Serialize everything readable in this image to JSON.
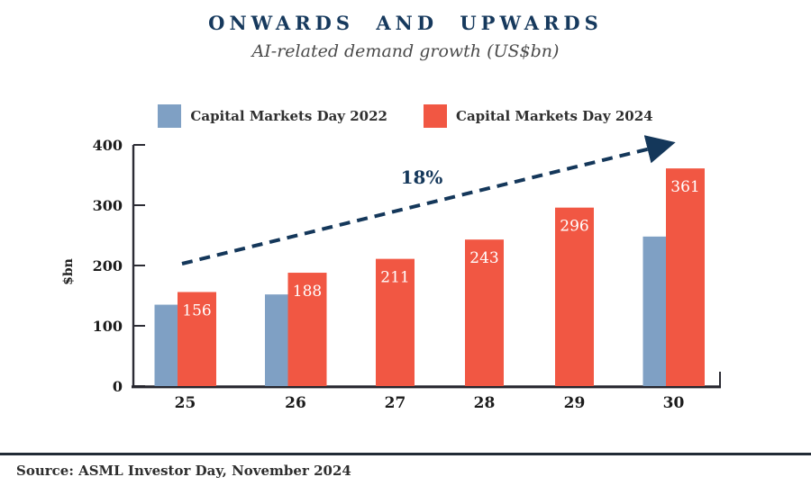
{
  "header": {
    "title": "ONWARDS AND UPWARDS",
    "subtitle": "AI-related demand growth (US$bn)"
  },
  "legend": [
    {
      "label": "Capital Markets Day 2022",
      "color": "#7fa0c4"
    },
    {
      "label": "Capital Markets Day 2024",
      "color": "#f15743"
    }
  ],
  "chart_data": {
    "type": "bar",
    "title": "ONWARDS AND UPWARDS",
    "subtitle": "AI-related demand growth (US$bn)",
    "categories": [
      "25",
      "26",
      "27",
      "28",
      "29",
      "30"
    ],
    "series": [
      {
        "name": "Capital Markets Day 2022",
        "color": "#7fa0c4",
        "values": [
          135,
          152,
          null,
          null,
          null,
          248
        ],
        "data_labels": false
      },
      {
        "name": "Capital Markets Day 2024",
        "color": "#f15743",
        "values": [
          156,
          188,
          211,
          243,
          296,
          361
        ],
        "data_labels": true
      }
    ],
    "ylabel": "$bn",
    "xlabel": "",
    "yticks": [
      0,
      100,
      200,
      300,
      400
    ],
    "ylim": [
      0,
      400
    ],
    "grid": false,
    "legend_position": "top",
    "annotation": {
      "text": "18%",
      "type": "dashed-arrow",
      "color": "#14375a"
    },
    "axis_color": "#2c2c34"
  },
  "footer": {
    "source": "Source: ASML Investor Day, November 2024"
  }
}
